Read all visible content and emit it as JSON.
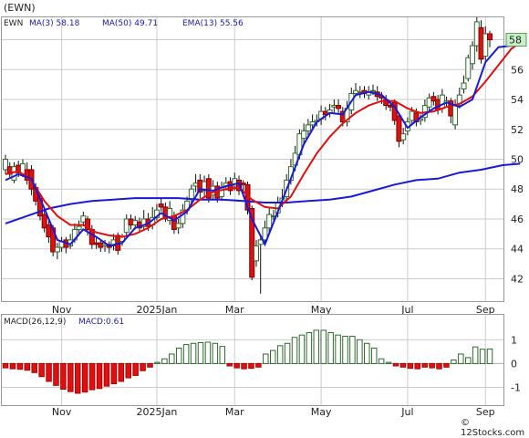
{
  "chart_data": [
    {
      "type": "candlestick",
      "symbol": "(EWN)",
      "legend": [
        {
          "label": "EWN",
          "color": "#000000"
        },
        {
          "label": "MA(3)",
          "value": "58.18",
          "color": "#1a1aa6"
        },
        {
          "label": "MA(50)",
          "value": "49.71",
          "color": "#1a1aa6"
        },
        {
          "label": "EMA(13)",
          "value": "55.56",
          "color": "#1a1aa6"
        }
      ],
      "last_price_label": "58",
      "ylim": [
        40.5,
        59.5
      ],
      "y_ticks": [
        42,
        44,
        46,
        48,
        50,
        52,
        54,
        56,
        58
      ],
      "x_ticks": [
        {
          "label": "Nov",
          "i": 13
        },
        {
          "label": "2025Jan",
          "i": 35
        },
        {
          "label": "Mar",
          "i": 53
        },
        {
          "label": "May",
          "i": 73
        },
        {
          "label": "Jul",
          "i": 93
        },
        {
          "label": "Sep",
          "i": 111
        }
      ],
      "candles": [
        [
          49.3,
          50.0,
          50.3,
          49.0
        ],
        [
          49.5,
          49.0,
          49.8,
          48.7
        ],
        [
          48.6,
          49.5,
          49.8,
          48.4
        ],
        [
          49.6,
          49.1,
          49.9,
          48.8
        ],
        [
          49.0,
          49.7,
          50.0,
          48.8
        ],
        [
          49.3,
          48.6,
          49.8,
          48.3
        ],
        [
          49.3,
          48.0,
          49.6,
          47.6
        ],
        [
          48.1,
          47.2,
          48.4,
          46.9
        ],
        [
          47.4,
          46.2,
          47.7,
          45.9
        ],
        [
          46.3,
          45.4,
          46.6,
          45.1
        ],
        [
          45.6,
          44.8,
          45.9,
          44.4
        ],
        [
          45.4,
          43.8,
          45.6,
          43.5
        ],
        [
          43.8,
          44.1,
          44.4,
          43.3
        ],
        [
          44.1,
          44.5,
          44.8,
          43.8
        ],
        [
          44.6,
          44.1,
          44.8,
          43.7
        ],
        [
          44.2,
          44.6,
          45.0,
          44.0
        ],
        [
          44.6,
          45.3,
          45.7,
          44.4
        ],
        [
          45.3,
          45.5,
          45.9,
          45.0
        ],
        [
          45.8,
          46.2,
          46.5,
          45.5
        ],
        [
          46.0,
          45.3,
          46.2,
          44.9
        ],
        [
          45.3,
          44.3,
          45.6,
          44.0
        ],
        [
          44.4,
          44.3,
          44.8,
          44.0
        ],
        [
          44.4,
          44.1,
          44.6,
          43.8
        ],
        [
          44.2,
          44.3,
          44.6,
          43.8
        ],
        [
          44.3,
          44.1,
          44.5,
          43.7
        ],
        [
          44.2,
          44.6,
          45.0,
          43.9
        ],
        [
          44.9,
          43.9,
          45.1,
          43.6
        ],
        [
          44.5,
          44.8,
          45.0,
          44.2
        ],
        [
          45.1,
          46.0,
          46.3,
          44.8
        ],
        [
          46.0,
          45.6,
          46.3,
          45.3
        ],
        [
          45.6,
          45.9,
          46.2,
          45.3
        ],
        [
          45.8,
          45.4,
          46.1,
          45.1
        ],
        [
          45.5,
          46.0,
          46.6,
          45.2
        ],
        [
          46.0,
          45.5,
          46.4,
          45.2
        ],
        [
          45.6,
          46.1,
          46.8,
          45.3
        ],
        [
          46.1,
          46.6,
          47.0,
          45.9
        ],
        [
          47.0,
          46.8,
          47.4,
          46.5
        ],
        [
          46.8,
          46.0,
          47.1,
          45.8
        ],
        [
          45.9,
          46.7,
          47.2,
          45.6
        ],
        [
          46.2,
          45.3,
          46.5,
          45.0
        ],
        [
          45.4,
          45.7,
          46.0,
          45.0
        ],
        [
          45.7,
          46.6,
          47.0,
          45.4
        ],
        [
          46.6,
          47.2,
          47.5,
          46.3
        ],
        [
          47.3,
          48.0,
          48.3,
          47.0
        ],
        [
          48.2,
          48.4,
          49.0,
          47.8
        ],
        [
          48.6,
          47.8,
          49.0,
          47.4
        ],
        [
          47.9,
          48.5,
          48.9,
          47.5
        ],
        [
          48.7,
          47.4,
          49.0,
          47.1
        ],
        [
          47.6,
          48.2,
          48.6,
          47.3
        ],
        [
          48.2,
          47.4,
          48.5,
          47.1
        ],
        [
          47.5,
          48.1,
          48.5,
          47.2
        ],
        [
          48.2,
          48.4,
          48.8,
          47.9
        ],
        [
          48.5,
          47.9,
          48.8,
          47.6
        ],
        [
          48.2,
          48.7,
          49.1,
          47.9
        ],
        [
          48.6,
          47.9,
          48.9,
          47.6
        ],
        [
          48.4,
          48.3,
          48.6,
          47.8
        ],
        [
          48.3,
          46.6,
          48.5,
          46.3
        ],
        [
          46.7,
          42.1,
          46.9,
          41.9
        ],
        [
          43.2,
          44.2,
          44.6,
          42.8
        ],
        [
          44.3,
          44.6,
          44.9,
          41.0
        ],
        [
          44.6,
          45.4,
          45.9,
          44.3
        ],
        [
          45.4,
          46.3,
          46.8,
          45.1
        ],
        [
          46.2,
          46.2,
          46.6,
          45.9
        ],
        [
          46.4,
          47.1,
          47.5,
          46.1
        ],
        [
          47.1,
          47.4,
          48.0,
          46.8
        ],
        [
          47.5,
          48.6,
          49.0,
          47.2
        ],
        [
          48.6,
          49.5,
          50.0,
          48.3
        ],
        [
          49.6,
          50.4,
          50.9,
          49.2
        ],
        [
          50.3,
          51.7,
          52.0,
          50.0
        ],
        [
          51.4,
          51.9,
          52.4,
          51.0
        ],
        [
          51.9,
          52.3,
          52.7,
          51.5
        ],
        [
          52.3,
          52.5,
          53.0,
          52.0
        ],
        [
          52.5,
          52.6,
          53.0,
          52.2
        ],
        [
          52.7,
          53.2,
          53.6,
          52.3
        ],
        [
          53.2,
          53.0,
          53.5,
          52.6
        ],
        [
          53.1,
          53.3,
          53.7,
          52.8
        ],
        [
          53.5,
          53.6,
          54.0,
          53.1
        ],
        [
          53.6,
          53.4,
          54.0,
          53.1
        ],
        [
          53.2,
          52.5,
          53.5,
          52.2
        ],
        [
          52.5,
          53.4,
          53.9,
          52.2
        ],
        [
          53.3,
          54.4,
          54.8,
          53.0
        ],
        [
          54.4,
          54.6,
          55.1,
          54.2
        ],
        [
          54.5,
          54.5,
          54.9,
          54.1
        ],
        [
          54.6,
          54.4,
          54.9,
          54.1
        ],
        [
          54.3,
          54.5,
          54.9,
          54.0
        ],
        [
          54.6,
          54.6,
          55.0,
          54.3
        ],
        [
          54.5,
          54.2,
          54.9,
          53.9
        ],
        [
          54.2,
          54.1,
          54.5,
          53.7
        ],
        [
          54.0,
          53.6,
          54.3,
          53.3
        ],
        [
          53.6,
          53.5,
          53.9,
          53.2
        ],
        [
          53.8,
          52.6,
          54.0,
          52.3
        ],
        [
          52.9,
          51.2,
          53.1,
          50.8
        ],
        [
          51.3,
          51.7,
          52.1,
          51.0
        ],
        [
          51.9,
          52.5,
          52.8,
          51.6
        ],
        [
          52.6,
          53.2,
          53.5,
          52.3
        ],
        [
          53.1,
          52.5,
          53.4,
          52.2
        ],
        [
          52.6,
          52.7,
          53.0,
          52.3
        ],
        [
          52.8,
          53.6,
          54.0,
          52.5
        ],
        [
          53.5,
          54.1,
          54.4,
          53.2
        ],
        [
          54.2,
          53.9,
          54.5,
          53.6
        ],
        [
          54.0,
          53.3,
          54.3,
          53.0
        ],
        [
          53.4,
          54.3,
          54.7,
          53.1
        ],
        [
          53.8,
          53.9,
          54.2,
          53.5
        ],
        [
          53.9,
          52.9,
          54.1,
          52.4
        ],
        [
          52.3,
          53.6,
          54.0,
          52.0
        ],
        [
          53.6,
          54.3,
          54.8,
          53.4
        ],
        [
          54.7,
          55.1,
          55.6,
          54.4
        ],
        [
          55.4,
          56.8,
          57.0,
          55.2
        ],
        [
          56.4,
          57.6,
          57.9,
          56.0
        ],
        [
          57.6,
          59.2,
          59.5,
          57.2
        ],
        [
          58.8,
          56.7,
          59.3,
          56.4
        ],
        [
          56.9,
          58.4,
          58.9,
          56.6
        ],
        [
          58.4,
          58.0,
          58.6,
          57.5
        ]
      ],
      "ma50": [
        [
          0,
          45.7
        ],
        [
          5,
          46.2
        ],
        [
          10,
          46.7
        ],
        [
          15,
          47.0
        ],
        [
          20,
          47.2
        ],
        [
          25,
          47.3
        ],
        [
          30,
          47.4
        ],
        [
          35,
          47.4
        ],
        [
          40,
          47.4
        ],
        [
          45,
          47.3
        ],
        [
          50,
          47.3
        ],
        [
          55,
          47.2
        ],
        [
          60,
          47.1
        ],
        [
          65,
          47.1
        ],
        [
          70,
          47.2
        ],
        [
          75,
          47.3
        ],
        [
          80,
          47.5
        ],
        [
          85,
          47.9
        ],
        [
          90,
          48.3
        ],
        [
          95,
          48.6
        ],
        [
          100,
          48.7
        ],
        [
          105,
          49.1
        ],
        [
          110,
          49.3
        ],
        [
          115,
          49.6
        ],
        [
          119,
          49.7
        ]
      ],
      "ema13": [
        [
          0,
          49.0
        ],
        [
          3,
          49.2
        ],
        [
          6,
          48.6
        ],
        [
          9,
          47.2
        ],
        [
          12,
          46.2
        ],
        [
          15,
          45.6
        ],
        [
          18,
          45.6
        ],
        [
          21,
          45.1
        ],
        [
          24,
          44.9
        ],
        [
          27,
          44.8
        ],
        [
          30,
          45.0
        ],
        [
          33,
          45.4
        ],
        [
          36,
          46.0
        ],
        [
          39,
          46.2
        ],
        [
          42,
          46.6
        ],
        [
          45,
          47.3
        ],
        [
          48,
          47.8
        ],
        [
          51,
          48.0
        ],
        [
          54,
          48.1
        ],
        [
          57,
          47.3
        ],
        [
          60,
          46.8
        ],
        [
          63,
          46.7
        ],
        [
          66,
          47.5
        ],
        [
          69,
          49.0
        ],
        [
          72,
          50.4
        ],
        [
          75,
          51.5
        ],
        [
          78,
          52.4
        ],
        [
          81,
          53.1
        ],
        [
          84,
          53.6
        ],
        [
          87,
          53.9
        ],
        [
          90,
          53.9
        ],
        [
          93,
          53.4
        ],
        [
          96,
          53.1
        ],
        [
          99,
          53.2
        ],
        [
          102,
          53.5
        ],
        [
          105,
          53.7
        ],
        [
          108,
          54.2
        ],
        [
          111,
          55.2
        ],
        [
          114,
          56.3
        ],
        [
          117,
          57.4
        ],
        [
          119,
          57.8
        ]
      ],
      "ma3": [
        [
          0,
          48.6
        ],
        [
          3,
          49.0
        ],
        [
          6,
          48.7
        ],
        [
          9,
          46.7
        ],
        [
          12,
          44.6
        ],
        [
          15,
          44.3
        ],
        [
          18,
          45.3
        ],
        [
          21,
          44.8
        ],
        [
          24,
          44.2
        ],
        [
          27,
          44.4
        ],
        [
          30,
          45.4
        ],
        [
          33,
          45.7
        ],
        [
          36,
          46.4
        ],
        [
          39,
          45.9
        ],
        [
          42,
          46.5
        ],
        [
          45,
          48.0
        ],
        [
          48,
          47.9
        ],
        [
          51,
          48.2
        ],
        [
          54,
          48.4
        ],
        [
          57,
          46.0
        ],
        [
          60,
          44.3
        ],
        [
          63,
          46.5
        ],
        [
          66,
          48.7
        ],
        [
          69,
          51.0
        ],
        [
          72,
          52.5
        ],
        [
          75,
          53.1
        ],
        [
          78,
          53.0
        ],
        [
          81,
          54.3
        ],
        [
          84,
          54.5
        ],
        [
          87,
          54.3
        ],
        [
          90,
          53.5
        ],
        [
          93,
          52.1
        ],
        [
          96,
          52.8
        ],
        [
          99,
          53.4
        ],
        [
          102,
          53.8
        ],
        [
          105,
          53.5
        ],
        [
          108,
          54.0
        ],
        [
          111,
          56.5
        ],
        [
          114,
          57.5
        ],
        [
          117,
          57.6
        ],
        [
          119,
          58.2
        ]
      ],
      "macd_label": "MACD(26,12,9)",
      "macd_value_label": "MACD:0.61",
      "macd_ylim": [
        -1.75,
        2.05
      ],
      "macd_ticks": [
        -1,
        0,
        1
      ],
      "macd_hist": [
        -0.18,
        -0.22,
        -0.24,
        -0.28,
        -0.38,
        -0.55,
        -0.75,
        -0.92,
        -1.08,
        -1.18,
        -1.25,
        -1.2,
        -1.1,
        -1.05,
        -0.95,
        -0.85,
        -0.75,
        -0.6,
        -0.5,
        -0.3,
        -0.15,
        0.05,
        0.2,
        0.4,
        0.65,
        0.8,
        0.85,
        0.88,
        0.9,
        0.85,
        0.72,
        -0.1,
        -0.18,
        -0.22,
        -0.2,
        -0.15,
        0.4,
        0.55,
        0.75,
        0.85,
        1.1,
        1.2,
        1.3,
        1.4,
        1.4,
        1.3,
        1.2,
        1.15,
        1.15,
        1.0,
        0.85,
        0.65,
        0.2,
        0.05,
        -0.1,
        -0.15,
        -0.2,
        -0.22,
        -0.15,
        -0.18,
        -0.22,
        -0.15,
        0.15,
        0.4,
        0.25,
        0.7,
        0.6,
        0.61
      ]
    }
  ],
  "footer": "© 12Stocks.com"
}
